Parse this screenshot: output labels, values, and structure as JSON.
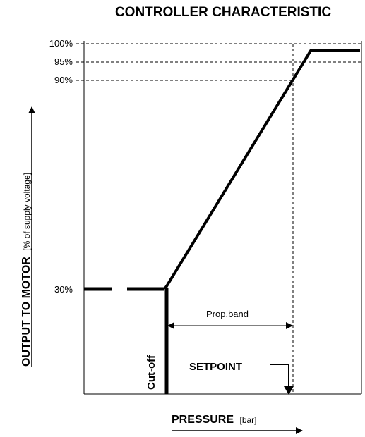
{
  "chart_data": {
    "type": "line",
    "title": "CONTROLLER CHARACTERISTIC",
    "ylabel_main": "OUTPUT TO MOTOR",
    "ylabel_sub": "[% of supply voltage]",
    "xlabel_main": "PRESSURE",
    "xlabel_sub": "[bar]",
    "y_ticks": [
      {
        "value": 100,
        "label": "100%"
      },
      {
        "value": 95,
        "label": "95%"
      },
      {
        "value": 90,
        "label": "90%"
      },
      {
        "value": 30,
        "label": "30%"
      }
    ],
    "ylim": [
      0,
      100
    ],
    "series": [
      {
        "style": "dashed",
        "points": [
          [
            0.0,
            30
          ],
          [
            0.19,
            30
          ]
        ]
      },
      {
        "style": "solid",
        "points": [
          [
            0.19,
            30
          ],
          [
            0.19,
            30
          ],
          [
            0.86,
            97
          ],
          [
            1.0,
            97
          ]
        ]
      },
      {
        "style": "solid",
        "points": [
          [
            0.19,
            0
          ],
          [
            0.19,
            30
          ]
        ]
      }
    ],
    "annotations": {
      "prop_band": "Prop.band",
      "cutoff": "Cut-off",
      "setpoint": "SETPOINT"
    },
    "grid": false
  }
}
